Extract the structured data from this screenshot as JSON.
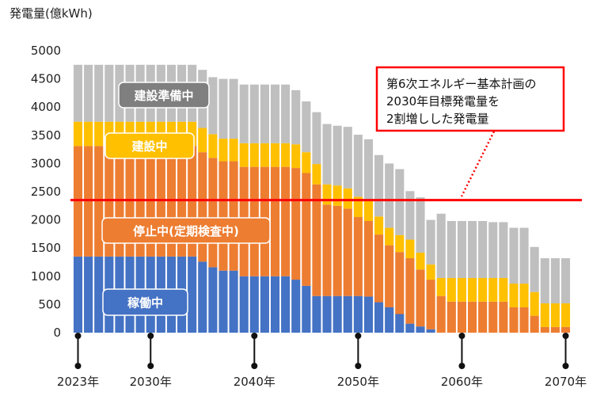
{
  "chart_data": {
    "type": "bar",
    "stacked": true,
    "ylabel": "発電量(億kWh)",
    "ylim": [
      0,
      5000
    ],
    "yticks": [
      0,
      500,
      1000,
      1500,
      2000,
      2500,
      3000,
      3500,
      4000,
      4500,
      5000
    ],
    "x_start_year": 2023,
    "x_end_year": 2070,
    "x_tick_labels": [
      {
        "year": 2023,
        "label": "2023年"
      },
      {
        "year": 2030,
        "label": "2030年"
      },
      {
        "year": 2040,
        "label": "2040年"
      },
      {
        "year": 2050,
        "label": "2050年"
      },
      {
        "year": 2060,
        "label": "2060年"
      },
      {
        "year": 2070,
        "label": "2070年"
      }
    ],
    "series": [
      {
        "name": "稼働中",
        "color": "#4472C4",
        "values": [
          1350,
          1350,
          1350,
          1350,
          1350,
          1350,
          1350,
          1350,
          1350,
          1350,
          1350,
          1350,
          1260,
          1160,
          1100,
          1100,
          1000,
          1000,
          1000,
          1000,
          1000,
          940,
          830,
          650,
          650,
          650,
          650,
          650,
          640,
          540,
          450,
          330,
          160,
          110,
          60,
          0,
          0,
          0,
          0,
          0,
          0,
          0,
          0,
          0,
          0,
          0,
          0,
          0
        ]
      },
      {
        "name": "停止中(定期検査中)",
        "color": "#ED7D31",
        "values": [
          1960,
          1960,
          1960,
          1960,
          1960,
          1960,
          1960,
          1960,
          1960,
          1960,
          1960,
          1960,
          1940,
          1940,
          1940,
          1940,
          1940,
          1940,
          1940,
          1940,
          1940,
          1980,
          2000,
          1980,
          1620,
          1600,
          1550,
          1400,
          1340,
          1200,
          1100,
          1100,
          1160,
          1010,
          880,
          650,
          550,
          550,
          550,
          550,
          550,
          550,
          450,
          450,
          300,
          100,
          100,
          100
        ]
      },
      {
        "name": "建設中",
        "color": "#FFC000",
        "values": [
          430,
          430,
          430,
          430,
          430,
          430,
          430,
          430,
          430,
          430,
          430,
          430,
          430,
          420,
          400,
          400,
          420,
          420,
          420,
          420,
          420,
          420,
          370,
          360,
          360,
          360,
          360,
          360,
          360,
          320,
          310,
          300,
          330,
          300,
          270,
          320,
          420,
          420,
          420,
          420,
          420,
          420,
          420,
          420,
          420,
          420,
          420,
          420
        ]
      },
      {
        "name": "建設準備中",
        "color": "#BFBFBF",
        "values": [
          1010,
          1010,
          1010,
          1010,
          1010,
          1010,
          1010,
          1010,
          1010,
          1010,
          1010,
          1010,
          1030,
          1010,
          1060,
          1060,
          1040,
          1040,
          1040,
          1040,
          1040,
          960,
          900,
          920,
          1070,
          1060,
          1090,
          1100,
          1090,
          1090,
          1140,
          1170,
          860,
          980,
          790,
          1140,
          1010,
          1010,
          1010,
          1010,
          990,
          990,
          990,
          990,
          800,
          800,
          800,
          800
        ]
      }
    ],
    "reference_line": {
      "value": 2350,
      "color": "#FF0000"
    },
    "annotation": {
      "lines": [
        "第6次エネルギー基本計画の",
        "2030年目標発電量を",
        "2割増しした発電量"
      ]
    },
    "category_labels": [
      {
        "series": "建設準備中",
        "text": "建設準備中"
      },
      {
        "series": "建設中",
        "text": "建設中"
      },
      {
        "series": "停止中(定期検査中)",
        "text": "停止中(定期検査中)"
      },
      {
        "series": "稼働中",
        "text": "稼働中"
      }
    ]
  }
}
